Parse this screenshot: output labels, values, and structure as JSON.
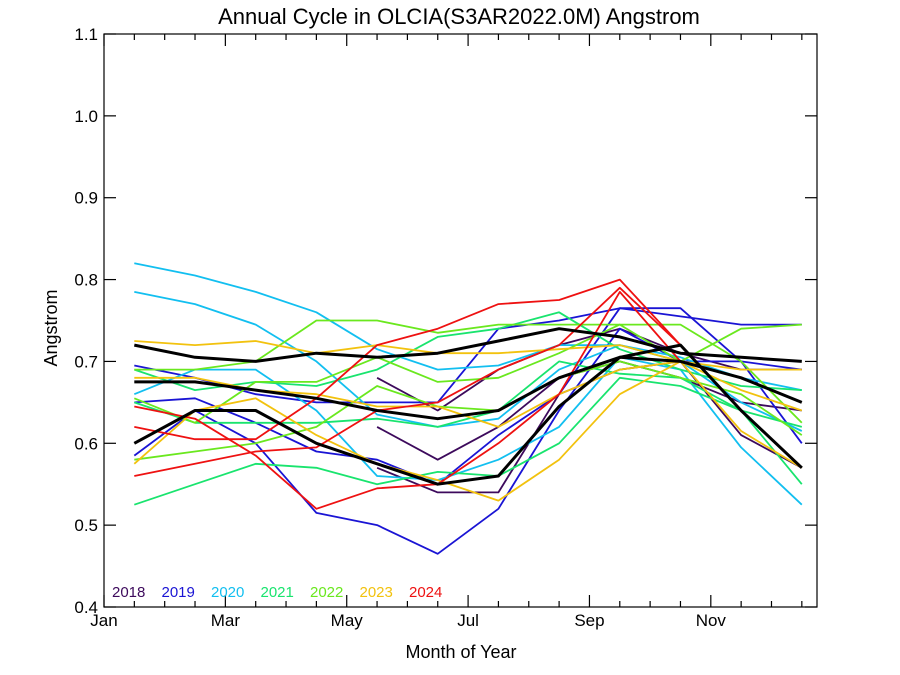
{
  "chart_data": {
    "type": "line",
    "title": "Annual Cycle in OLCIA(S3AR2022.0M) Angstrom",
    "xlabel": "Month of Year",
    "ylabel": "Angstrom",
    "xlim": [
      1,
      12.75
    ],
    "ylim": [
      0.4,
      1.1
    ],
    "x_ticks": [
      {
        "value": 1,
        "label": "Jan"
      },
      {
        "value": 3,
        "label": "Mar"
      },
      {
        "value": 5,
        "label": "May"
      },
      {
        "value": 7,
        "label": "Jul"
      },
      {
        "value": 9,
        "label": "Sep"
      },
      {
        "value": 11,
        "label": "Nov"
      }
    ],
    "y_ticks": [
      0.4,
      0.5,
      0.6,
      0.7,
      0.8,
      0.9,
      1.0,
      1.1
    ],
    "y_tick_labels": [
      "0.4",
      "0.5",
      "0.6",
      "0.7",
      "0.8",
      "0.9",
      "1.0",
      "1.1"
    ],
    "x": [
      1.5,
      2.5,
      3.5,
      4.5,
      5.5,
      6.5,
      7.5,
      8.5,
      9.5,
      10.5,
      11.5,
      12.5
    ],
    "legend_position": "bottom-left",
    "series": [
      {
        "name": "2018",
        "color": "#3d0a5c",
        "lines": [
          [
            null,
            null,
            null,
            null,
            0.68,
            0.64,
            0.69,
            0.72,
            0.74,
            0.71,
            0.69,
            0.69
          ],
          [
            null,
            null,
            null,
            null,
            0.62,
            0.58,
            0.62,
            0.68,
            0.7,
            0.68,
            0.65,
            0.64
          ],
          [
            null,
            null,
            null,
            null,
            0.57,
            0.54,
            0.54,
            0.66,
            0.69,
            0.7,
            0.61,
            0.57
          ]
        ]
      },
      {
        "name": "2019",
        "color": "#1a14d4",
        "lines": [
          [
            0.695,
            0.68,
            0.66,
            0.65,
            0.65,
            0.65,
            0.74,
            0.75,
            0.765,
            0.755,
            0.745,
            0.745
          ],
          [
            0.65,
            0.655,
            0.625,
            0.59,
            0.58,
            0.55,
            0.61,
            0.66,
            0.765,
            0.765,
            0.7,
            0.6
          ],
          [
            0.585,
            0.64,
            0.6,
            0.515,
            0.5,
            0.465,
            0.52,
            0.64,
            0.74,
            0.7,
            0.7,
            0.69
          ]
        ]
      },
      {
        "name": "2020",
        "color": "#12bff0",
        "lines": [
          [
            0.82,
            0.805,
            0.785,
            0.76,
            0.715,
            0.69,
            0.695,
            0.72,
            0.72,
            0.705,
            0.68,
            0.665
          ],
          [
            0.785,
            0.77,
            0.745,
            0.7,
            0.635,
            0.62,
            0.63,
            0.69,
            0.72,
            0.7,
            0.65,
            0.615
          ],
          [
            0.66,
            0.69,
            0.69,
            0.64,
            0.56,
            0.555,
            0.58,
            0.62,
            0.705,
            0.69,
            0.595,
            0.525
          ]
        ]
      },
      {
        "name": "2021",
        "color": "#19e46e",
        "lines": [
          [
            0.69,
            0.665,
            0.675,
            0.67,
            0.69,
            0.73,
            0.74,
            0.76,
            0.715,
            0.69,
            0.67,
            0.665
          ],
          [
            0.65,
            0.625,
            0.625,
            0.625,
            0.63,
            0.62,
            0.64,
            0.7,
            0.685,
            0.68,
            0.64,
            0.62
          ],
          [
            0.525,
            0.55,
            0.575,
            0.57,
            0.55,
            0.565,
            0.56,
            0.6,
            0.68,
            0.67,
            0.64,
            0.55
          ]
        ]
      },
      {
        "name": "2022",
        "color": "#6ae81e",
        "lines": [
          [
            0.69,
            0.69,
            0.7,
            0.75,
            0.75,
            0.735,
            0.745,
            0.745,
            0.745,
            0.7,
            0.74,
            0.745
          ],
          [
            0.655,
            0.625,
            0.675,
            0.675,
            0.705,
            0.675,
            0.68,
            0.71,
            0.745,
            0.745,
            0.7,
            0.625
          ],
          [
            0.58,
            0.59,
            0.6,
            0.62,
            0.67,
            0.645,
            0.64,
            0.68,
            0.7,
            0.68,
            0.66,
            0.61
          ]
        ]
      },
      {
        "name": "2023",
        "color": "#f2c20e",
        "lines": [
          [
            0.725,
            0.72,
            0.725,
            0.71,
            0.72,
            0.71,
            0.71,
            0.715,
            0.72,
            0.7,
            0.69,
            0.69
          ],
          [
            0.68,
            0.68,
            0.665,
            0.66,
            0.645,
            0.645,
            0.62,
            0.66,
            0.69,
            0.7,
            0.665,
            0.64
          ],
          [
            0.575,
            0.64,
            0.655,
            0.61,
            0.575,
            0.555,
            0.53,
            0.58,
            0.66,
            0.7,
            0.615,
            0.57
          ]
        ]
      },
      {
        "name": "2024",
        "color": "#ee1111",
        "lines": [
          [
            0.62,
            0.605,
            0.605,
            0.655,
            0.72,
            0.74,
            0.77,
            0.775,
            0.8,
            0.72,
            null,
            null
          ],
          [
            0.56,
            0.575,
            0.59,
            0.595,
            0.64,
            0.65,
            0.69,
            0.72,
            0.79,
            0.72,
            null,
            null
          ],
          [
            0.645,
            0.63,
            0.585,
            0.52,
            0.545,
            0.55,
            0.6,
            0.66,
            0.785,
            0.7,
            null,
            null
          ]
        ]
      },
      {
        "name": "",
        "color": "#000000",
        "bold": true,
        "lines": [
          [
            0.72,
            0.705,
            0.7,
            0.71,
            0.705,
            0.71,
            0.725,
            0.74,
            0.73,
            0.71,
            0.705,
            0.7
          ],
          [
            0.675,
            0.675,
            0.665,
            0.655,
            0.64,
            0.63,
            0.64,
            0.68,
            0.705,
            0.7,
            0.68,
            0.65
          ],
          [
            0.6,
            0.64,
            0.64,
            0.6,
            0.575,
            0.55,
            0.56,
            0.645,
            0.705,
            0.72,
            0.64,
            0.57
          ]
        ]
      }
    ]
  }
}
